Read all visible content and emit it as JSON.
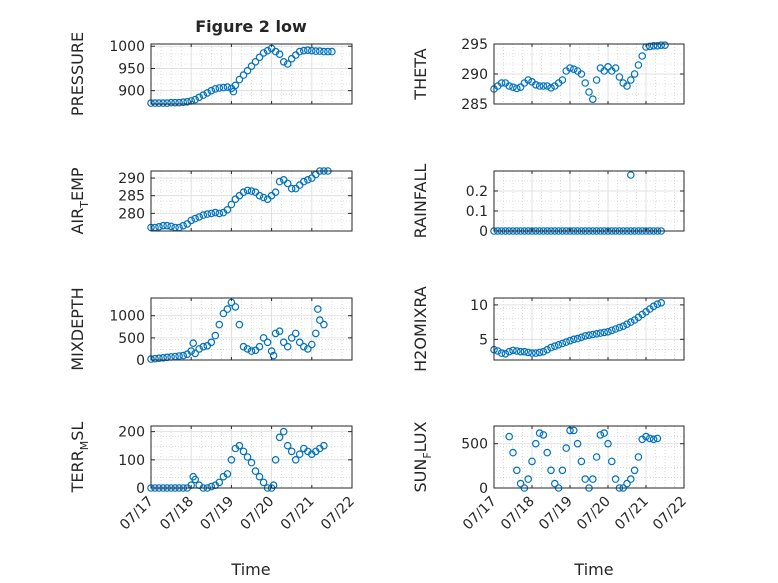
{
  "figure": {
    "title": "Figure 2 low",
    "xlabel": "Time",
    "colors": {
      "marker": "#0072BD",
      "axis": "#262626",
      "grid": "#c8c8c8"
    }
  },
  "chart_data": [
    {
      "type": "scatter",
      "ylabel": "PRESSURE",
      "ylim": [
        870,
        1005
      ],
      "yticks": [
        900,
        950,
        1000
      ],
      "xlim": [
        0,
        5
      ],
      "xtick_labels": [],
      "grid": true,
      "x": [
        0.0,
        0.1,
        0.2,
        0.3,
        0.4,
        0.5,
        0.6,
        0.7,
        0.8,
        0.9,
        1.0,
        1.1,
        1.2,
        1.3,
        1.4,
        1.5,
        1.6,
        1.7,
        1.8,
        1.9,
        2.0,
        2.05,
        2.1,
        2.2,
        2.3,
        2.4,
        2.5,
        2.6,
        2.7,
        2.8,
        2.9,
        3.0,
        3.1,
        3.2,
        3.3,
        3.4,
        3.5,
        3.6,
        3.7,
        3.8,
        3.9,
        4.0,
        4.1,
        4.2,
        4.3,
        4.4,
        4.5
      ],
      "y": [
        872,
        872,
        872,
        872,
        872,
        873,
        873,
        873,
        874,
        875,
        877,
        880,
        885,
        890,
        895,
        900,
        904,
        906,
        907,
        908,
        905,
        898,
        912,
        925,
        935,
        945,
        955,
        965,
        975,
        985,
        990,
        995,
        988,
        982,
        965,
        960,
        972,
        980,
        988,
        990,
        991,
        990,
        989,
        989,
        988,
        988,
        988
      ]
    },
    {
      "type": "scatter",
      "ylabel": "THETA",
      "ylim": [
        285,
        295
      ],
      "yticks": [
        285,
        290,
        295
      ],
      "xlim": [
        0,
        5
      ],
      "xtick_labels": [],
      "grid": true,
      "x": [
        0.0,
        0.1,
        0.2,
        0.3,
        0.4,
        0.5,
        0.6,
        0.7,
        0.8,
        0.9,
        1.0,
        1.1,
        1.2,
        1.3,
        1.4,
        1.5,
        1.6,
        1.7,
        1.8,
        1.9,
        2.0,
        2.1,
        2.2,
        2.3,
        2.4,
        2.5,
        2.6,
        2.7,
        2.8,
        2.9,
        3.0,
        3.1,
        3.2,
        3.3,
        3.4,
        3.5,
        3.6,
        3.7,
        3.8,
        3.9,
        4.0,
        4.1,
        4.2,
        4.3,
        4.4,
        4.5
      ],
      "y": [
        287.5,
        288,
        288.5,
        288.5,
        288,
        287.8,
        287.6,
        287.8,
        288.5,
        289,
        288.7,
        288.2,
        288,
        288,
        288,
        287.7,
        288,
        288.5,
        289,
        290.5,
        291,
        290.8,
        290.5,
        290,
        288.5,
        287,
        285.8,
        289,
        291,
        290.5,
        291.2,
        290.5,
        291,
        289.5,
        288.5,
        288,
        289,
        290,
        291.5,
        293,
        294.5,
        294.6,
        294.7,
        294.7,
        294.8,
        294.8
      ]
    },
    {
      "type": "scatter",
      "ylabel": "AIR_TEMP",
      "ylim": [
        275,
        292
      ],
      "yticks": [
        280,
        285,
        290
      ],
      "xlim": [
        0,
        5
      ],
      "xtick_labels": [],
      "grid": true,
      "x": [
        0.0,
        0.1,
        0.2,
        0.3,
        0.4,
        0.5,
        0.6,
        0.7,
        0.8,
        0.9,
        1.0,
        1.1,
        1.2,
        1.3,
        1.4,
        1.5,
        1.6,
        1.7,
        1.8,
        1.9,
        2.0,
        2.1,
        2.2,
        2.3,
        2.4,
        2.5,
        2.6,
        2.7,
        2.8,
        2.9,
        3.0,
        3.1,
        3.2,
        3.3,
        3.4,
        3.5,
        3.6,
        3.7,
        3.8,
        3.9,
        4.0,
        4.1,
        4.2,
        4.3,
        4.4
      ],
      "y": [
        276,
        276,
        276.2,
        276.5,
        276.5,
        276.3,
        276,
        276,
        276.5,
        277,
        278,
        278.5,
        279,
        279.5,
        279.8,
        280,
        280.2,
        280,
        280.2,
        281,
        282.5,
        284,
        285,
        286,
        286.5,
        286.3,
        286,
        285,
        284.5,
        284,
        285,
        286,
        289,
        289.5,
        288.5,
        287,
        287,
        288,
        289,
        289.5,
        290,
        291,
        292,
        292,
        292
      ]
    },
    {
      "type": "scatter",
      "ylabel": "RAINFALL",
      "ylim": [
        0,
        0.3
      ],
      "yticks": [
        0,
        0.1,
        0.2
      ],
      "ytick_labels": [
        "0",
        "0.1",
        "0.2"
      ],
      "xlim": [
        0,
        5
      ],
      "xtick_labels": [],
      "grid": true,
      "x": [
        0.0,
        0.1,
        0.2,
        0.3,
        0.4,
        0.5,
        0.6,
        0.7,
        0.8,
        0.9,
        1.0,
        1.1,
        1.2,
        1.3,
        1.4,
        1.5,
        1.6,
        1.7,
        1.8,
        1.9,
        2.0,
        2.1,
        2.2,
        2.3,
        2.4,
        2.5,
        2.6,
        2.7,
        2.8,
        2.9,
        3.0,
        3.1,
        3.2,
        3.3,
        3.4,
        3.5,
        3.6,
        3.7,
        3.8,
        3.9,
        4.0,
        4.1,
        4.2,
        4.3,
        4.4,
        3.6
      ],
      "y": [
        0,
        0,
        0,
        0,
        0,
        0,
        0,
        0,
        0,
        0,
        0,
        0,
        0,
        0,
        0,
        0,
        0,
        0,
        0,
        0,
        0,
        0,
        0,
        0,
        0,
        0,
        0,
        0,
        0,
        0,
        0,
        0,
        0,
        0,
        0,
        0,
        0,
        0,
        0,
        0,
        0,
        0,
        0,
        0,
        0,
        0.28
      ]
    },
    {
      "type": "scatter",
      "ylabel": "MIXDEPTH",
      "ylim": [
        0,
        1400
      ],
      "yticks": [
        0,
        500,
        1000
      ],
      "xlim": [
        0,
        5
      ],
      "xtick_labels": [],
      "grid": true,
      "x": [
        0.0,
        0.1,
        0.2,
        0.3,
        0.4,
        0.5,
        0.6,
        0.7,
        0.8,
        0.9,
        1.0,
        1.05,
        1.1,
        1.2,
        1.3,
        1.4,
        1.5,
        1.6,
        1.7,
        1.8,
        1.9,
        2.0,
        2.1,
        2.2,
        2.3,
        2.4,
        2.5,
        2.6,
        2.7,
        2.8,
        2.9,
        3.0,
        3.05,
        3.1,
        3.2,
        3.3,
        3.4,
        3.5,
        3.6,
        3.7,
        3.8,
        3.9,
        4.0,
        4.1,
        4.15,
        4.2,
        4.3
      ],
      "y": [
        20,
        30,
        40,
        50,
        60,
        70,
        80,
        90,
        100,
        130,
        200,
        380,
        150,
        250,
        300,
        320,
        400,
        550,
        800,
        1050,
        1150,
        1300,
        1200,
        800,
        300,
        250,
        200,
        220,
        300,
        500,
        400,
        200,
        100,
        600,
        650,
        400,
        300,
        500,
        600,
        400,
        300,
        250,
        350,
        600,
        1150,
        900,
        800
      ]
    },
    {
      "type": "scatter",
      "ylabel": "H2OMIXRA",
      "ylim": [
        2,
        11
      ],
      "yticks": [
        5,
        10
      ],
      "xlim": [
        0,
        5
      ],
      "xtick_labels": [],
      "grid": true,
      "x": [
        0.0,
        0.1,
        0.2,
        0.3,
        0.4,
        0.5,
        0.6,
        0.7,
        0.8,
        0.9,
        1.0,
        1.1,
        1.2,
        1.3,
        1.4,
        1.5,
        1.6,
        1.7,
        1.8,
        1.9,
        2.0,
        2.1,
        2.2,
        2.3,
        2.4,
        2.5,
        2.6,
        2.7,
        2.8,
        2.9,
        3.0,
        3.1,
        3.2,
        3.3,
        3.4,
        3.5,
        3.6,
        3.7,
        3.8,
        3.9,
        4.0,
        4.1,
        4.2,
        4.3,
        4.4
      ],
      "y": [
        3.5,
        3.3,
        3,
        2.9,
        3.2,
        3.4,
        3.3,
        3.2,
        3.2,
        3.1,
        3,
        3,
        3.1,
        3.2,
        3.5,
        3.8,
        4,
        4.2,
        4.4,
        4.6,
        4.8,
        5,
        5.1,
        5.3,
        5.5,
        5.6,
        5.7,
        5.8,
        5.9,
        6,
        6.1,
        6.3,
        6.5,
        6.7,
        6.9,
        7.2,
        7.5,
        7.8,
        8.2,
        8.6,
        9,
        9.4,
        9.8,
        10.1,
        10.3
      ]
    },
    {
      "type": "scatter",
      "ylabel": "TERR_MSL",
      "ylim": [
        0,
        220
      ],
      "yticks": [
        0,
        100,
        200
      ],
      "xlim": [
        0,
        5
      ],
      "xtick_labels": [
        "07/17",
        "07/18",
        "07/19",
        "07/20",
        "07/21",
        "07/22"
      ],
      "grid": true,
      "x": [
        0.0,
        0.1,
        0.2,
        0.3,
        0.4,
        0.5,
        0.6,
        0.7,
        0.8,
        0.9,
        1.0,
        1.05,
        1.1,
        1.2,
        1.3,
        1.4,
        1.5,
        1.6,
        1.7,
        1.8,
        1.9,
        2.0,
        2.1,
        2.2,
        2.3,
        2.4,
        2.5,
        2.6,
        2.7,
        2.8,
        2.9,
        3.0,
        3.05,
        3.1,
        3.2,
        3.3,
        3.4,
        3.5,
        3.6,
        3.7,
        3.8,
        3.9,
        4.0,
        4.1,
        4.2,
        4.3
      ],
      "y": [
        0,
        0,
        0,
        0,
        0,
        0,
        0,
        0,
        0,
        0,
        10,
        40,
        30,
        10,
        0,
        0,
        5,
        10,
        20,
        40,
        50,
        100,
        140,
        150,
        130,
        110,
        90,
        60,
        40,
        20,
        0,
        0,
        10,
        100,
        180,
        200,
        150,
        130,
        100,
        120,
        140,
        130,
        120,
        130,
        140,
        150
      ]
    },
    {
      "type": "scatter",
      "ylabel": "SUN_FLUX",
      "ylim": [
        0,
        700
      ],
      "yticks": [
        0,
        500
      ],
      "xlim": [
        0,
        5
      ],
      "xtick_labels": [
        "07/17",
        "07/18",
        "07/19",
        "07/20",
        "07/21",
        "07/22"
      ],
      "grid": true,
      "x": [
        0.4,
        0.5,
        0.6,
        0.7,
        0.8,
        0.9,
        1.0,
        1.1,
        1.2,
        1.3,
        1.4,
        1.5,
        1.6,
        1.7,
        1.8,
        1.9,
        2.0,
        2.1,
        2.2,
        2.3,
        2.4,
        2.5,
        2.6,
        2.7,
        2.8,
        2.9,
        3.0,
        3.1,
        3.2,
        3.3,
        3.4,
        3.5,
        3.6,
        3.7,
        3.8,
        3.9,
        4.0,
        4.1,
        4.2,
        4.3
      ],
      "y": [
        580,
        400,
        200,
        50,
        0,
        100,
        300,
        500,
        620,
        600,
        400,
        200,
        50,
        0,
        200,
        450,
        650,
        650,
        500,
        300,
        100,
        0,
        100,
        350,
        600,
        620,
        500,
        300,
        100,
        0,
        0,
        50,
        100,
        200,
        350,
        550,
        580,
        560,
        550,
        560
      ]
    }
  ]
}
